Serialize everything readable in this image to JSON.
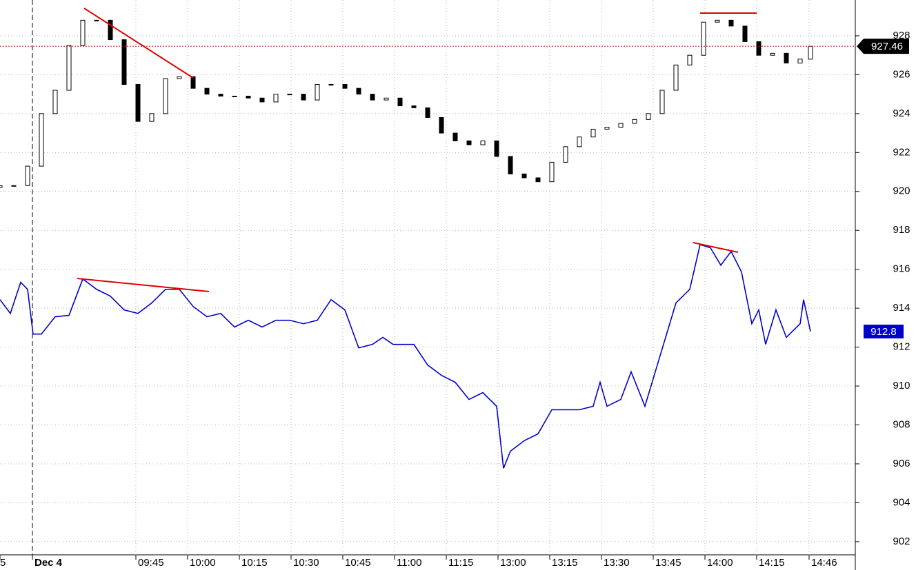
{
  "chart_data": {
    "type": "candlestick",
    "x": [
      0,
      4,
      8,
      12,
      16,
      20,
      24,
      28,
      32,
      36,
      40,
      44,
      48,
      52,
      56,
      60,
      64,
      68,
      72,
      76,
      80,
      84,
      88,
      92,
      96,
      100,
      104,
      108,
      112,
      116,
      120,
      124,
      128,
      132,
      136,
      140,
      144,
      148,
      152,
      156,
      160,
      164,
      168,
      172,
      176,
      180,
      184,
      188,
      192,
      196,
      200,
      204,
      208,
      212,
      216,
      220,
      224,
      228,
      232,
      235
    ],
    "open": [
      920.2,
      920.3,
      920.3,
      921.3,
      924.0,
      925.2,
      927.5,
      928.8,
      928.8,
      927.8,
      925.5,
      923.6,
      924.0,
      925.8,
      925.9,
      925.3,
      925.0,
      924.9,
      924.9,
      924.8,
      924.6,
      925.0,
      925.0,
      924.7,
      925.5,
      925.5,
      925.3,
      925.0,
      924.7,
      924.8,
      924.4,
      924.3,
      923.8,
      923.0,
      922.6,
      922.4,
      922.6,
      921.8,
      920.9,
      920.7,
      920.5,
      921.5,
      922.3,
      922.8,
      923.2,
      923.3,
      923.5,
      923.7,
      924.0,
      925.2,
      926.5,
      927.0,
      928.7,
      928.8,
      928.5,
      927.7,
      927.0,
      927.1,
      926.6,
      926.8
    ],
    "close": [
      920.3,
      920.3,
      921.3,
      924.0,
      925.2,
      927.5,
      928.8,
      928.8,
      927.8,
      925.5,
      923.6,
      924.0,
      925.8,
      925.9,
      925.3,
      925.0,
      924.9,
      924.9,
      924.8,
      924.6,
      925.0,
      925.0,
      924.7,
      925.5,
      925.5,
      925.3,
      925.0,
      924.7,
      924.8,
      924.4,
      924.3,
      923.8,
      923.0,
      922.6,
      922.4,
      922.6,
      921.8,
      920.9,
      920.7,
      920.5,
      921.5,
      922.3,
      922.8,
      923.2,
      923.3,
      923.5,
      923.7,
      924.0,
      925.2,
      926.5,
      927.0,
      928.7,
      928.8,
      928.5,
      927.7,
      927.0,
      927.1,
      926.6,
      926.8,
      927.46
    ],
    "color": "#000000",
    "overlay": {
      "type": "line",
      "color": "#0000cc",
      "x": [
        0,
        3,
        6,
        8,
        9.6,
        12,
        16,
        20,
        24,
        28,
        32,
        36,
        40,
        44,
        48,
        52,
        56,
        60,
        64,
        68,
        72,
        76,
        80,
        84,
        88,
        92,
        96,
        100,
        104,
        108,
        111,
        114,
        120,
        124,
        128,
        132,
        136,
        140,
        144,
        146,
        148,
        152,
        156,
        160,
        164,
        168,
        172,
        174,
        176,
        180,
        183,
        187,
        190,
        193,
        196,
        200,
        203,
        206,
        209,
        212,
        215,
        218,
        220,
        222,
        225,
        228,
        232,
        233,
        235
      ],
      "values": [
        914.44,
        913.73,
        915.33,
        914.97,
        912.67,
        912.67,
        913.56,
        913.63,
        915.5,
        914.97,
        914.62,
        913.91,
        913.73,
        914.27,
        914.97,
        914.97,
        914.09,
        913.56,
        913.73,
        913.03,
        913.38,
        913.03,
        913.38,
        913.38,
        913.2,
        913.38,
        914.44,
        913.91,
        911.96,
        912.14,
        912.5,
        912.14,
        912.14,
        911.08,
        910.55,
        910.19,
        909.31,
        909.66,
        908.96,
        905.77,
        906.65,
        907.19,
        907.54,
        908.78,
        908.78,
        908.78,
        908.96,
        910.19,
        908.96,
        909.31,
        910.73,
        908.96,
        910.73,
        912.5,
        914.27,
        914.97,
        917.27,
        917.1,
        916.21,
        916.92,
        915.86,
        913.2,
        913.91,
        912.14,
        913.91,
        912.5,
        913.2,
        914.44,
        912.8
      ]
    },
    "xlim": [
      0,
      248
    ],
    "xticks": [
      {
        "value": 0,
        "label": "5"
      },
      {
        "value": 9.4,
        "label": "Dec 4"
      },
      {
        "value": 39.4,
        "label": "09:45"
      },
      {
        "value": 54.4,
        "label": "10:00"
      },
      {
        "value": 69.4,
        "label": "10:15"
      },
      {
        "value": 84.4,
        "label": "10:30"
      },
      {
        "value": 99.4,
        "label": "10:45"
      },
      {
        "value": 114.4,
        "label": "11:00"
      },
      {
        "value": 129.4,
        "label": "11:15"
      },
      {
        "value": 144.4,
        "label": "13:00"
      },
      {
        "value": 159.4,
        "label": "13:15"
      },
      {
        "value": 174.4,
        "label": "13:30"
      },
      {
        "value": 189.4,
        "label": "13:45"
      },
      {
        "value": 204.4,
        "label": "14:00"
      },
      {
        "value": 219.4,
        "label": "14:15"
      },
      {
        "value": 234.6,
        "label": "14:46"
      }
    ],
    "ylim": [
      901.5,
      929.84
    ],
    "yticks": [
      902,
      904,
      906,
      908,
      910,
      912,
      914,
      916,
      918,
      920,
      922,
      924,
      926,
      928
    ],
    "grid": true
  }
}
